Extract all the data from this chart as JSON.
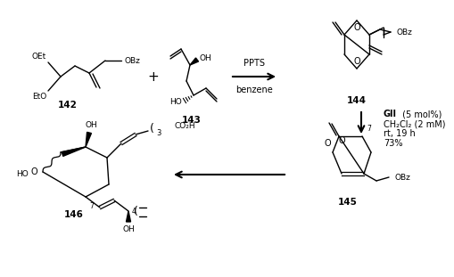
{
  "bg": "#ffffff",
  "fw": 4.74,
  "fh": 2.91,
  "dpi": 100,
  "reagents_top": [
    "PPTS",
    "benzene"
  ],
  "reagents_right": [
    "GII",
    " (5 mol%)",
    "CH₂Cl₂ (2 mM)",
    "rt, 19 h",
    "73%"
  ],
  "compound_numbers": [
    "142",
    "143",
    "144",
    "145",
    "146"
  ]
}
